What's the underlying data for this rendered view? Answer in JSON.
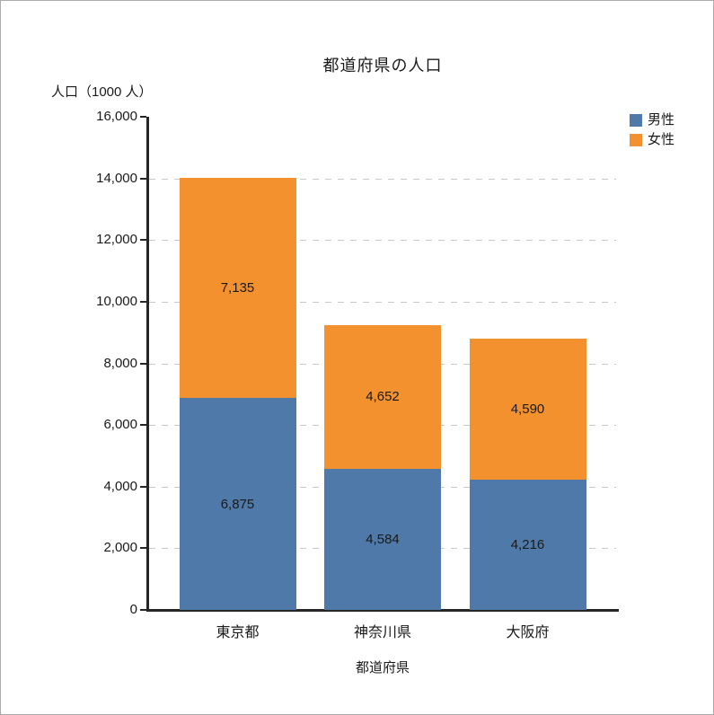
{
  "chart_data": {
    "type": "bar",
    "stacked": true,
    "title": "都道府県の人口",
    "xlabel": "都道府県",
    "ylabel": "人口（1000 人）",
    "categories": [
      "東京都",
      "神奈川県",
      "大阪府"
    ],
    "series": [
      {
        "name": "男性",
        "color": "#4E79A8",
        "values": [
          6875,
          4584,
          4216
        ],
        "labels": [
          "6,875",
          "4,584",
          "4,216"
        ]
      },
      {
        "name": "女性",
        "color": "#F2912D",
        "values": [
          7135,
          4652,
          4590
        ],
        "labels": [
          "7,135",
          "4,652",
          "4,590"
        ]
      }
    ],
    "ylim": [
      0,
      16000
    ],
    "y_ticks": [
      0,
      2000,
      4000,
      6000,
      8000,
      10000,
      12000,
      14000,
      16000
    ],
    "y_tick_labels": [
      "0",
      "2,000",
      "4,000",
      "6,000",
      "8,000",
      "10,000",
      "12,000",
      "14,000",
      "16,000"
    ],
    "grid": "horizontal-dashed",
    "legend_position": "top-right",
    "colors": {
      "axis": "#262626",
      "grid": "#c9c9c9",
      "text": "#1a1a1a",
      "background": "#ffffff"
    }
  }
}
